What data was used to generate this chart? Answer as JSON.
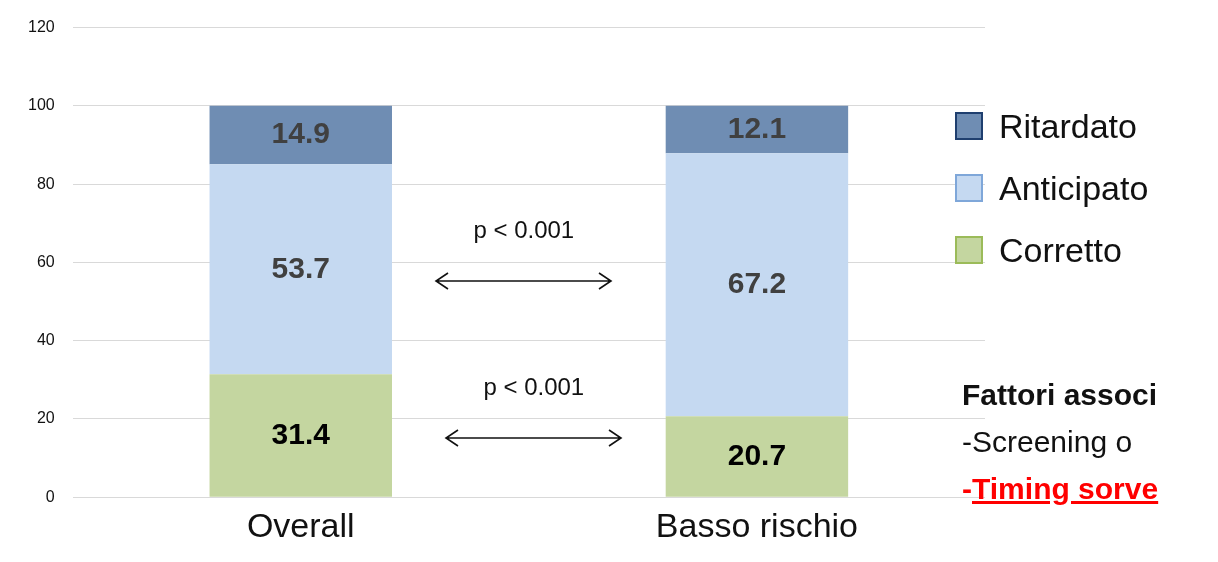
{
  "chart_data": {
    "type": "bar",
    "stacked": true,
    "categories": [
      "Overall",
      "Basso rischio"
    ],
    "series": [
      {
        "name": "Corretto",
        "color": "#c4d6a0",
        "values": [
          31.4,
          20.7
        ]
      },
      {
        "name": "Anticipato",
        "color": "#c5d9f1",
        "values": [
          53.7,
          67.2
        ]
      },
      {
        "name": "Ritardato",
        "color": "#6f8db3",
        "values": [
          14.9,
          12.1
        ]
      }
    ],
    "ylim": [
      0,
      120
    ],
    "yticks": [
      0,
      20,
      40,
      60,
      80,
      100,
      120
    ],
    "grid": "y",
    "legend": "right",
    "data_labels": true,
    "annotations": [
      "p < 0.001",
      "p < 0.001",
      "Fattori associ",
      "-Screening o",
      "-Timing sorve"
    ]
  }
}
